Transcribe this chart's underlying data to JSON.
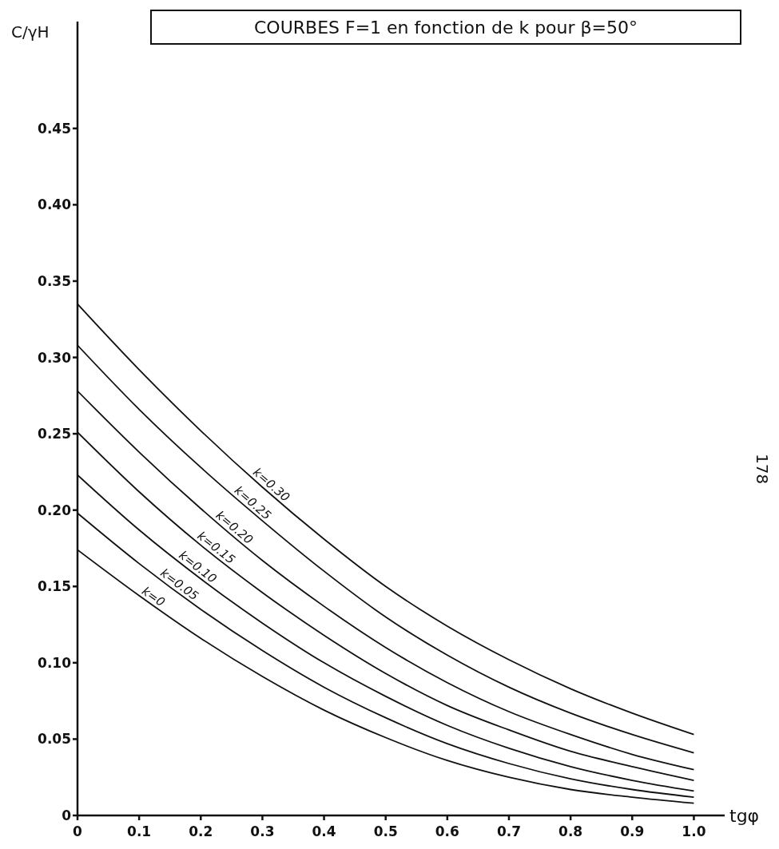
{
  "chart_data": {
    "type": "line",
    "title": "COURBES F=1 en fonction de k pour β=50°",
    "xlabel": "tgφ",
    "ylabel": "C/γH",
    "annotations": [
      "178"
    ],
    "x": [
      0,
      0.1,
      0.2,
      0.3,
      0.4,
      0.5,
      0.6,
      0.7,
      0.8,
      0.9,
      1.0
    ],
    "series": [
      {
        "name": "k=0",
        "color": "#111111",
        "values": [
          0.174,
          0.144,
          0.116,
          0.091,
          0.069,
          0.051,
          0.036,
          0.025,
          0.017,
          0.012,
          0.008
        ]
      },
      {
        "name": "k=0.05",
        "color": "#111111",
        "values": [
          0.198,
          0.165,
          0.135,
          0.108,
          0.084,
          0.064,
          0.047,
          0.034,
          0.024,
          0.017,
          0.012
        ]
      },
      {
        "name": "k=0.10",
        "color": "#111111",
        "values": [
          0.223,
          0.187,
          0.155,
          0.126,
          0.1,
          0.078,
          0.059,
          0.044,
          0.032,
          0.023,
          0.016
        ]
      },
      {
        "name": "k=0.15",
        "color": "#111111",
        "values": [
          0.251,
          0.212,
          0.177,
          0.146,
          0.118,
          0.093,
          0.072,
          0.056,
          0.042,
          0.032,
          0.023
        ]
      },
      {
        "name": "k=0.20",
        "color": "#111111",
        "values": [
          0.278,
          0.238,
          0.201,
          0.167,
          0.137,
          0.11,
          0.087,
          0.068,
          0.053,
          0.04,
          0.03
        ]
      },
      {
        "name": "k=0.25",
        "color": "#111111",
        "values": [
          0.308,
          0.266,
          0.228,
          0.193,
          0.16,
          0.13,
          0.105,
          0.084,
          0.067,
          0.053,
          0.041
        ]
      },
      {
        "name": "k=0.30",
        "color": "#111111",
        "values": [
          0.335,
          0.292,
          0.252,
          0.215,
          0.181,
          0.15,
          0.124,
          0.102,
          0.083,
          0.067,
          0.053
        ]
      }
    ],
    "xlim": [
      0,
      1.05
    ],
    "ylim": [
      0,
      0.52
    ],
    "xticks": [
      0,
      0.1,
      0.2,
      0.3,
      0.4,
      0.5,
      0.6,
      0.7,
      0.8,
      0.9,
      {
        "value": 1,
        "label": "1.0"
      }
    ],
    "yticks": [
      0,
      0.05,
      {
        "value": 0.1,
        "label": "0.10"
      },
      0.15,
      {
        "value": 0.2,
        "label": "0.20"
      },
      0.25,
      {
        "value": 0.3,
        "label": "0.30"
      },
      0.35,
      {
        "value": 0.4,
        "label": "0.40"
      },
      0.45
    ],
    "grid": false,
    "legend": false,
    "marker": "none",
    "line_style": "solid"
  }
}
